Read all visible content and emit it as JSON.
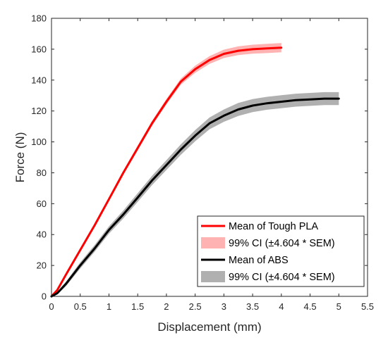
{
  "chart_data": {
    "type": "line",
    "title": "",
    "xlabel": "Displacement (mm)",
    "ylabel": "Force (N)",
    "xlim": [
      0,
      5.5
    ],
    "ylim": [
      0,
      180
    ],
    "xticks": [
      "0",
      "0.5",
      "1",
      "1.5",
      "2",
      "2.5",
      "3",
      "3.5",
      "4",
      "4.5",
      "5",
      "5.5"
    ],
    "yticks": [
      "0",
      "20",
      "40",
      "60",
      "80",
      "100",
      "120",
      "140",
      "160",
      "180"
    ],
    "grid": false,
    "legend_position": "bottom-right",
    "series": [
      {
        "name": "Mean of Tough PLA",
        "color": "#ff0000",
        "x": [
          0,
          0.1,
          0.25,
          0.5,
          0.75,
          1.0,
          1.25,
          1.5,
          1.75,
          2.0,
          2.25,
          2.5,
          2.75,
          3.0,
          3.25,
          3.5,
          3.75,
          4.0
        ],
        "y": [
          0,
          4,
          14,
          30,
          46,
          63,
          80,
          96,
          112,
          126,
          139,
          147,
          153,
          157,
          159,
          160,
          160.5,
          161
        ]
      },
      {
        "name": "99% CI (±4.604 * SEM)",
        "color": "#ffb2b2",
        "x": [
          0,
          0.1,
          0.25,
          0.5,
          0.75,
          1.0,
          1.25,
          1.5,
          1.75,
          2.0,
          2.25,
          2.5,
          2.75,
          3.0,
          3.25,
          3.5,
          3.75,
          4.0
        ],
        "upper": [
          0,
          4.5,
          14.8,
          31,
          47,
          64.2,
          81.3,
          97.5,
          113.6,
          127.8,
          141,
          149.3,
          155.5,
          159.7,
          161.8,
          162.9,
          163.5,
          164
        ],
        "lower": [
          0,
          3.5,
          13.2,
          29,
          45,
          61.8,
          78.7,
          94.5,
          110.4,
          124.2,
          137,
          144.7,
          150.5,
          154.3,
          156.2,
          157.1,
          157.5,
          158
        ]
      },
      {
        "name": "Mean of ABS",
        "color": "#000000",
        "x": [
          0,
          0.1,
          0.25,
          0.5,
          0.75,
          1.0,
          1.25,
          1.5,
          1.75,
          2.0,
          2.25,
          2.5,
          2.75,
          3.0,
          3.25,
          3.5,
          3.75,
          4.0,
          4.25,
          4.5,
          4.75,
          5.0
        ],
        "y": [
          0,
          2,
          8,
          20,
          31,
          43,
          53,
          64,
          75,
          85,
          95,
          104,
          112,
          117,
          121,
          123.5,
          125,
          126,
          127,
          127.5,
          128,
          128
        ]
      },
      {
        "name": "99% CI (±4.604 * SEM)",
        "color": "#b0b0b0",
        "x": [
          0,
          0.1,
          0.25,
          0.5,
          0.75,
          1.0,
          1.25,
          1.5,
          1.75,
          2.0,
          2.25,
          2.5,
          2.75,
          3.0,
          3.25,
          3.5,
          3.75,
          4.0,
          4.25,
          4.5,
          4.75,
          5.0
        ],
        "upper": [
          0,
          2.8,
          9.5,
          22,
          33.2,
          45.4,
          55.6,
          66.8,
          78,
          88.2,
          98.4,
          107.6,
          115.8,
          121,
          125.2,
          127.7,
          129.2,
          130.2,
          131.2,
          131.7,
          132.2,
          132.2
        ],
        "lower": [
          0,
          1.2,
          6.5,
          18,
          28.8,
          40.6,
          50.4,
          61.2,
          72,
          81.8,
          91.6,
          100.4,
          108.2,
          113,
          116.8,
          119.3,
          120.8,
          121.8,
          122.8,
          123.3,
          123.8,
          123.8
        ]
      }
    ]
  }
}
